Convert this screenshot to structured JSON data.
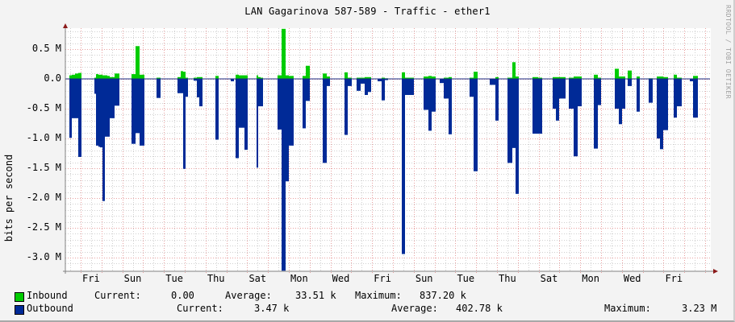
{
  "header": {
    "title": "LAN Gagarinova 587-589 - Traffic - ether1",
    "watermark": "RRDTOOL / TOBI OETIKER"
  },
  "axes": {
    "ylabel": "bits per second",
    "yticks": [
      {
        "label": "0.5 M",
        "value": 0.5
      },
      {
        "label": "0.0",
        "value": 0.0
      },
      {
        "label": "-0.5 M",
        "value": -0.5
      },
      {
        "label": "-1.0 M",
        "value": -1.0
      },
      {
        "label": "-1.5 M",
        "value": -1.5
      },
      {
        "label": "-2.0 M",
        "value": -2.0
      },
      {
        "label": "-2.5 M",
        "value": -2.5
      },
      {
        "label": "-3.0 M",
        "value": -3.0
      }
    ],
    "xticks": [
      "Fri",
      "Sun",
      "Tue",
      "Thu",
      "Sat",
      "Mon",
      "Wed",
      "Fri",
      "Sun",
      "Tue",
      "Thu",
      "Sat",
      "Mon",
      "Wed",
      "Fri"
    ]
  },
  "legend": {
    "inbound": {
      "name": "Inbound",
      "color": "#00cc00",
      "current_label": "Current:",
      "current": "0.00",
      "average_label": "Average:",
      "average": "33.51 k",
      "maximum_label": "Maximum:",
      "maximum": "837.20 k"
    },
    "outbound": {
      "name": "Outbound",
      "color": "#002a97",
      "current_label": "Current:",
      "current": "3.47 k",
      "average_label": "Average:",
      "average": "402.78 k",
      "maximum_label": "Maximum:",
      "maximum": "3.23 M"
    }
  },
  "colors": {
    "inbound": "#00cc00",
    "outbound": "#002a97",
    "outbound_edge": "#a9b6e0",
    "grid_major": "#e8a0a0",
    "grid_minor": "#d0d0d0",
    "axis": "#808080",
    "arrow": "#8b1a1a",
    "zero_line": "#1a2a80"
  },
  "chart_data": {
    "type": "area",
    "title": "LAN Gagarinova 587-589 - Traffic - ether1",
    "xlabel": "",
    "ylabel": "bits per second",
    "ylim": [
      -3.22,
      0.85
    ],
    "y_units": "M bits/s (outbound plotted negative)",
    "grid": true,
    "legend_position": "bottom",
    "categories": [
      "Fri",
      "Sun",
      "Tue",
      "Thu",
      "Sat",
      "Mon",
      "Wed",
      "Fri",
      "Sun",
      "Tue",
      "Thu",
      "Sat",
      "Mon",
      "Wed",
      "Fri"
    ],
    "bar_format": "[x_px_start, x_px_end, inbound_M, outbound_M_negative]",
    "bars": [
      [
        86,
        89,
        0.06,
        -0.99
      ],
      [
        89,
        93,
        0.07,
        -0.66
      ],
      [
        93,
        97,
        0.09,
        -0.66
      ],
      [
        97,
        101,
        0.1,
        -1.31
      ],
      [
        117,
        119,
        0.02,
        -0.25
      ],
      [
        119,
        122,
        0.08,
        -1.12
      ],
      [
        122,
        124,
        0.07,
        -1.14
      ],
      [
        124,
        127,
        0.07,
        -1.15
      ],
      [
        127,
        130,
        0.06,
        -2.05
      ],
      [
        130,
        133,
        0.06,
        -0.97
      ],
      [
        133,
        136,
        0.05,
        -0.97
      ],
      [
        136,
        139,
        0.03,
        -0.66
      ],
      [
        139,
        142,
        0.03,
        -0.66
      ],
      [
        142,
        144,
        0.09,
        -0.45
      ],
      [
        144,
        148,
        0.09,
        -0.45
      ],
      [
        163,
        168,
        0.08,
        -1.09
      ],
      [
        168,
        173,
        0.55,
        -0.91
      ],
      [
        173,
        179,
        0.07,
        -1.12
      ],
      [
        194,
        199,
        0.02,
        -0.32
      ],
      [
        220,
        224,
        0.03,
        -0.24
      ],
      [
        224,
        227,
        0.13,
        -0.24
      ],
      [
        227,
        230,
        0.12,
        -1.51
      ],
      [
        230,
        233,
        0.02,
        -0.3
      ],
      [
        240,
        244,
        0.02,
        -0.03
      ],
      [
        244,
        247,
        0.03,
        -0.31
      ],
      [
        247,
        251,
        0.03,
        -0.46
      ],
      [
        267,
        271,
        0.05,
        -1.02
      ],
      [
        286,
        290,
        0.0,
        -0.04
      ],
      [
        292,
        296,
        0.07,
        -1.33
      ],
      [
        296,
        303,
        0.06,
        -0.82
      ],
      [
        303,
        307,
        0.06,
        -1.19
      ],
      [
        318,
        320,
        0.06,
        -1.49
      ],
      [
        320,
        323,
        0.03,
        -0.46
      ],
      [
        323,
        326,
        0.02,
        -0.46
      ],
      [
        344,
        349,
        0.06,
        -0.85
      ],
      [
        349,
        354,
        0.84,
        -3.22
      ],
      [
        354,
        358,
        0.06,
        -1.72
      ],
      [
        358,
        364,
        0.05,
        -1.12
      ],
      [
        375,
        379,
        0.05,
        -0.83
      ],
      [
        379,
        384,
        0.22,
        -0.37
      ],
      [
        400,
        405,
        0.09,
        -1.41
      ],
      [
        405,
        409,
        0.04,
        -0.12
      ],
      [
        427,
        431,
        0.11,
        -0.94
      ],
      [
        431,
        436,
        0.02,
        -0.12
      ],
      [
        442,
        447,
        0.02,
        -0.2
      ],
      [
        447,
        452,
        0.02,
        -0.08
      ],
      [
        452,
        456,
        0.03,
        -0.27
      ],
      [
        456,
        460,
        0.03,
        -0.22
      ],
      [
        468,
        473,
        0.0,
        -0.04
      ],
      [
        473,
        477,
        0.02,
        -0.36
      ],
      [
        477,
        481,
        0.01,
        -0.02
      ],
      [
        498,
        502,
        0.11,
        -2.94
      ],
      [
        502,
        507,
        0.02,
        -0.27
      ],
      [
        507,
        513,
        0.02,
        -0.27
      ],
      [
        525,
        531,
        0.04,
        -0.52
      ],
      [
        531,
        535,
        0.05,
        -0.87
      ],
      [
        535,
        540,
        0.04,
        -0.55
      ],
      [
        545,
        550,
        0.0,
        -0.07
      ],
      [
        550,
        556,
        0.02,
        -0.33
      ],
      [
        556,
        560,
        0.03,
        -0.93
      ],
      [
        582,
        587,
        0.02,
        -0.3
      ],
      [
        587,
        592,
        0.12,
        -1.55
      ],
      [
        607,
        614,
        0.0,
        -0.1
      ],
      [
        614,
        618,
        0.03,
        -0.7
      ],
      [
        629,
        635,
        0.02,
        -1.41
      ],
      [
        635,
        639,
        0.28,
        -1.16
      ],
      [
        639,
        643,
        0.04,
        -1.93
      ],
      [
        660,
        667,
        0.03,
        -0.92
      ],
      [
        667,
        672,
        0.02,
        -0.92
      ],
      [
        685,
        689,
        0.03,
        -0.5
      ],
      [
        689,
        693,
        0.03,
        -0.7
      ],
      [
        693,
        701,
        0.03,
        -0.33
      ],
      [
        705,
        711,
        0.02,
        -0.5
      ],
      [
        711,
        716,
        0.04,
        -1.3
      ],
      [
        716,
        721,
        0.04,
        -0.46
      ],
      [
        736,
        741,
        0.07,
        -1.17
      ],
      [
        741,
        745,
        0.02,
        -0.44
      ],
      [
        762,
        767,
        0.17,
        -0.5
      ],
      [
        767,
        771,
        0.04,
        -0.76
      ],
      [
        771,
        775,
        0.04,
        -0.5
      ],
      [
        778,
        783,
        0.14,
        -0.12
      ],
      [
        789,
        793,
        0.04,
        -0.55
      ],
      [
        804,
        809,
        0.01,
        -0.4
      ],
      [
        814,
        818,
        0.04,
        -1.0
      ],
      [
        818,
        822,
        0.04,
        -1.18
      ],
      [
        822,
        828,
        0.03,
        -0.86
      ],
      [
        835,
        839,
        0.07,
        -0.65
      ],
      [
        839,
        845,
        0.02,
        -0.46
      ],
      [
        855,
        859,
        0.0,
        -0.04
      ],
      [
        859,
        865,
        0.05,
        -0.65
      ]
    ],
    "series": [
      {
        "name": "Inbound",
        "color": "#00cc00",
        "current": 0.0,
        "average_k": 33.51,
        "maximum_k": 837.2
      },
      {
        "name": "Outbound",
        "color": "#002a97",
        "current_k": 3.47,
        "average_k": 402.78,
        "maximum_M": 3.23
      }
    ]
  }
}
